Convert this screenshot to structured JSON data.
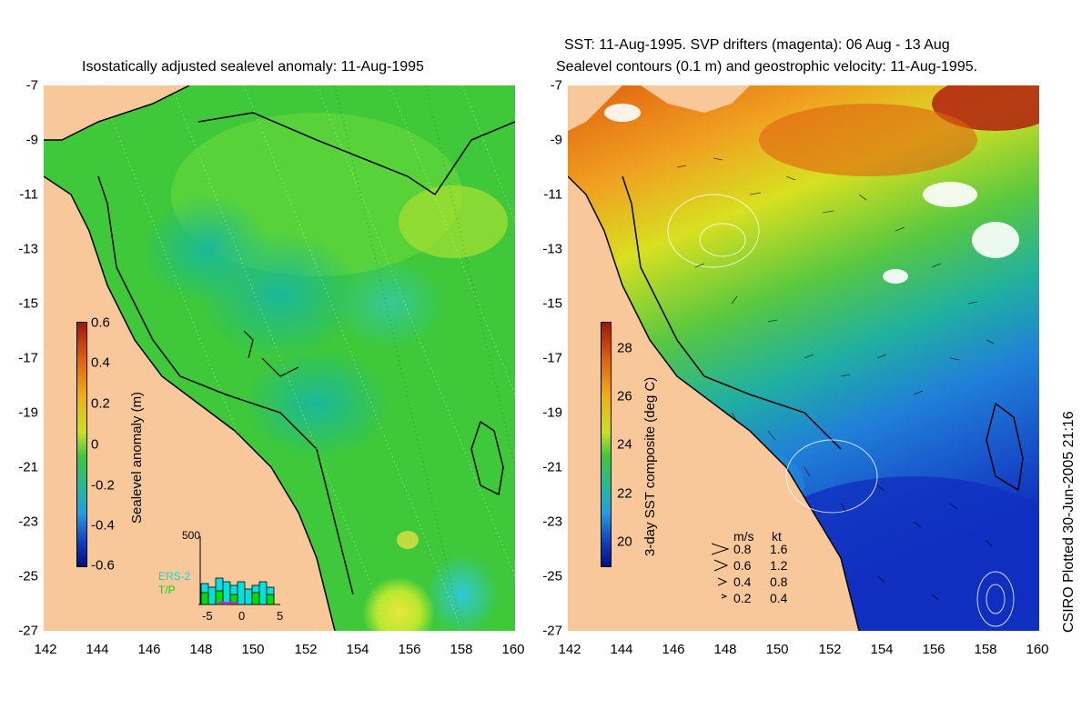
{
  "left_panel": {
    "title": "Isostatically adjusted sealevel anomaly: 11-Aug-1995",
    "colorbar_label": "Sealevel anomaly (m)",
    "colorbar_ticks": [
      "0.6",
      "0.4",
      "0.2",
      "0",
      "-0.2",
      "-0.4",
      "-0.6"
    ],
    "inset": {
      "ymax_label": "500",
      "series_labels": [
        "ERS-2",
        "T/P"
      ],
      "series_colors": [
        "#00e0e0",
        "#00dd00"
      ],
      "x_ticks": [
        "-5",
        "0",
        "5"
      ]
    }
  },
  "right_panel": {
    "title_line1": "SST: 11-Aug-1995. SVP drifters (magenta): 06 Aug - 13 Aug",
    "title_line2": "Sealevel contours (0.1 m) and geostrophic velocity: 11-Aug-1995.",
    "colorbar_label": "3-day SST composite (deg C)",
    "colorbar_ticks": [
      "28",
      "26",
      "24",
      "22",
      "20"
    ],
    "velocity_legend": {
      "header_ms": "m/s",
      "header_kt": "kt",
      "rows": [
        {
          "ms": "0.8",
          "kt": "1.6"
        },
        {
          "ms": "0.6",
          "kt": "1.2"
        },
        {
          "ms": "0.4",
          "kt": "0.8"
        },
        {
          "ms": "0.2",
          "kt": "0.4"
        }
      ]
    }
  },
  "axes": {
    "x_ticks": [
      "142",
      "144",
      "146",
      "148",
      "150",
      "152",
      "154",
      "156",
      "158",
      "160"
    ],
    "y_ticks": [
      "-7",
      "-9",
      "-11",
      "-13",
      "-15",
      "-17",
      "-19",
      "-21",
      "-23",
      "-25",
      "-27"
    ]
  },
  "credit": "CSIRO Plotted 30-Jun-2005 21:16",
  "colors": {
    "land": "#f8c89a",
    "sla_base": "#3ec83a",
    "sst_warm": "#e06010",
    "sst_cool": "#1030c0"
  }
}
